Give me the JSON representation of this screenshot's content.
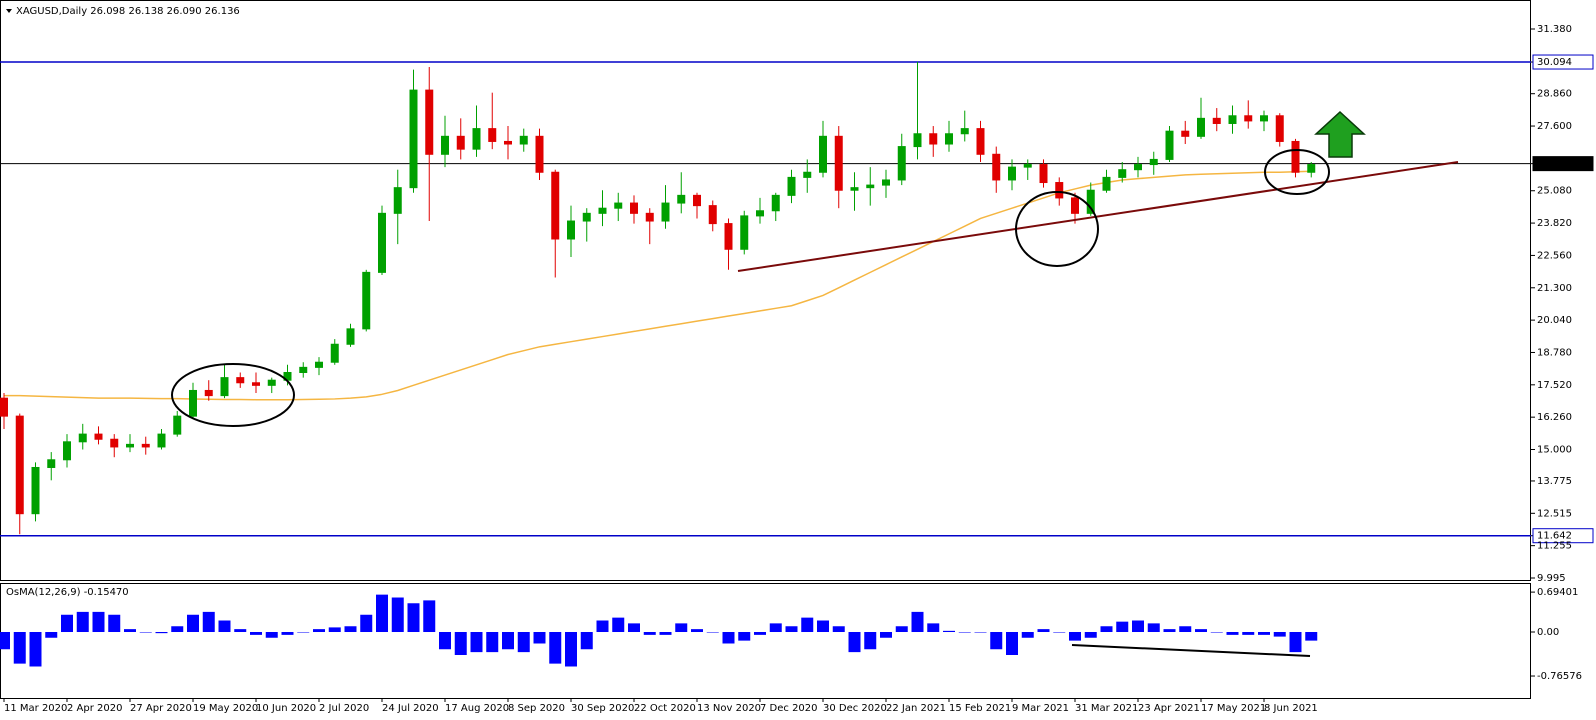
{
  "chart_data": {
    "type": "candlestick",
    "title": "XAGUSD,Daily  26.098 26.138 26.090 26.136",
    "categories": [
      "11 Mar 2020",
      null,
      null,
      null,
      "2 Apr 2020",
      null,
      null,
      null,
      "27 Apr 2020",
      null,
      null,
      null,
      "19 May 2020",
      null,
      null,
      null,
      "10 Jun 2020",
      null,
      null,
      null,
      "2 Jul 2020",
      null,
      null,
      null,
      "24 Jul 2020",
      null,
      null,
      null,
      "17 Aug 2020",
      null,
      null,
      null,
      "8 Sep 2020",
      null,
      null,
      null,
      "30 Sep 2020",
      null,
      null,
      null,
      "22 Oct 2020",
      null,
      null,
      null,
      "13 Nov 2020",
      null,
      null,
      null,
      "7 Dec 2020",
      null,
      null,
      null,
      "30 Dec 2020",
      null,
      null,
      null,
      "22 Jan 2021",
      null,
      null,
      null,
      "15 Feb 2021",
      null,
      null,
      null,
      "9 Mar 2021",
      null,
      null,
      null,
      "31 Mar 2021",
      null,
      null,
      null,
      "23 Apr 2021",
      null,
      null,
      null,
      "17 May 2021",
      null,
      null,
      null,
      "8 Jun 2021",
      null,
      null,
      null
    ],
    "ohlc": [
      [
        17.0,
        17.2,
        15.8,
        16.3
      ],
      [
        16.3,
        16.4,
        11.7,
        12.5
      ],
      [
        12.5,
        14.5,
        12.2,
        14.3
      ],
      [
        14.3,
        14.9,
        13.8,
        14.6
      ],
      [
        14.6,
        15.6,
        14.3,
        15.3
      ],
      [
        15.3,
        16.0,
        15.0,
        15.6
      ],
      [
        15.6,
        15.9,
        15.2,
        15.4
      ],
      [
        15.4,
        15.6,
        14.7,
        15.1
      ],
      [
        15.1,
        15.6,
        14.9,
        15.2
      ],
      [
        15.2,
        15.5,
        14.8,
        15.1
      ],
      [
        15.1,
        15.8,
        15.0,
        15.6
      ],
      [
        15.6,
        16.5,
        15.5,
        16.3
      ],
      [
        16.3,
        17.6,
        16.2,
        17.3
      ],
      [
        17.3,
        17.7,
        16.9,
        17.1
      ],
      [
        17.1,
        18.3,
        17.0,
        17.8
      ],
      [
        17.8,
        18.0,
        17.4,
        17.6
      ],
      [
        17.6,
        18.0,
        17.2,
        17.5
      ],
      [
        17.5,
        17.8,
        17.2,
        17.7
      ],
      [
        17.7,
        18.3,
        17.5,
        18.0
      ],
      [
        18.0,
        18.4,
        17.8,
        18.2
      ],
      [
        18.2,
        18.6,
        17.9,
        18.4
      ],
      [
        18.4,
        19.3,
        18.3,
        19.1
      ],
      [
        19.1,
        19.9,
        19.0,
        19.7
      ],
      [
        19.7,
        22.0,
        19.6,
        21.9
      ],
      [
        21.9,
        24.5,
        21.8,
        24.2
      ],
      [
        24.2,
        25.9,
        23.0,
        25.2
      ],
      [
        25.2,
        29.8,
        25.0,
        29.0
      ],
      [
        29.0,
        29.9,
        23.9,
        26.5
      ],
      [
        26.5,
        28.0,
        26.0,
        27.2
      ],
      [
        27.2,
        27.9,
        26.3,
        26.7
      ],
      [
        26.7,
        28.4,
        26.4,
        27.5
      ],
      [
        27.5,
        28.9,
        26.7,
        27.0
      ],
      [
        27.0,
        27.6,
        26.3,
        26.9
      ],
      [
        26.9,
        27.5,
        26.6,
        27.2
      ],
      [
        27.2,
        27.5,
        25.5,
        25.8
      ],
      [
        25.8,
        25.9,
        21.7,
        23.2
      ],
      [
        23.2,
        24.5,
        22.5,
        23.9
      ],
      [
        23.9,
        24.4,
        23.1,
        24.2
      ],
      [
        24.2,
        25.1,
        23.7,
        24.4
      ],
      [
        24.4,
        25.0,
        23.9,
        24.6
      ],
      [
        24.6,
        24.9,
        23.8,
        24.2
      ],
      [
        24.2,
        24.4,
        23.0,
        23.9
      ],
      [
        23.9,
        25.3,
        23.6,
        24.6
      ],
      [
        24.6,
        25.8,
        24.2,
        24.9
      ],
      [
        24.9,
        25.0,
        24.0,
        24.5
      ],
      [
        24.5,
        24.7,
        23.5,
        23.8
      ],
      [
        23.8,
        24.0,
        22.0,
        22.8
      ],
      [
        22.8,
        24.3,
        22.6,
        24.1
      ],
      [
        24.1,
        24.8,
        23.8,
        24.3
      ],
      [
        24.3,
        25.0,
        23.9,
        24.9
      ],
      [
        24.9,
        25.9,
        24.6,
        25.6
      ],
      [
        25.6,
        26.3,
        25.0,
        25.8
      ],
      [
        25.8,
        27.8,
        25.6,
        27.2
      ],
      [
        27.2,
        27.6,
        24.4,
        25.1
      ],
      [
        25.1,
        25.8,
        24.3,
        25.2
      ],
      [
        25.2,
        26.0,
        24.5,
        25.3
      ],
      [
        25.3,
        25.9,
        24.8,
        25.5
      ],
      [
        25.5,
        27.3,
        25.3,
        26.8
      ],
      [
        26.8,
        30.1,
        26.3,
        27.3
      ],
      [
        27.3,
        27.6,
        26.4,
        26.9
      ],
      [
        26.9,
        27.8,
        26.6,
        27.3
      ],
      [
        27.3,
        28.2,
        27.0,
        27.5
      ],
      [
        27.5,
        27.8,
        26.2,
        26.5
      ],
      [
        26.5,
        26.8,
        25.0,
        25.5
      ],
      [
        25.5,
        26.3,
        25.1,
        26.0
      ],
      [
        26.0,
        26.3,
        25.5,
        26.1
      ],
      [
        26.1,
        26.3,
        25.2,
        25.4
      ],
      [
        25.4,
        25.6,
        24.5,
        24.8
      ],
      [
        24.8,
        25.0,
        23.8,
        24.2
      ],
      [
        24.2,
        25.4,
        24.1,
        25.1
      ],
      [
        25.1,
        25.9,
        25.0,
        25.6
      ],
      [
        25.6,
        26.2,
        25.4,
        25.9
      ],
      [
        25.9,
        26.4,
        25.6,
        26.1
      ],
      [
        26.1,
        26.6,
        25.7,
        26.3
      ],
      [
        26.3,
        27.6,
        26.2,
        27.4
      ],
      [
        27.4,
        27.8,
        26.9,
        27.2
      ],
      [
        27.2,
        28.7,
        27.1,
        27.9
      ],
      [
        27.9,
        28.3,
        27.4,
        27.7
      ],
      [
        27.7,
        28.4,
        27.3,
        28.0
      ],
      [
        28.0,
        28.6,
        27.5,
        27.8
      ],
      [
        27.8,
        28.2,
        27.4,
        28.0
      ],
      [
        28.0,
        28.1,
        26.8,
        27.0
      ],
      [
        27.0,
        27.1,
        25.6,
        25.8
      ],
      [
        25.8,
        26.2,
        25.6,
        26.1
      ]
    ],
    "up_color": "#00a000",
    "down_color": "#e00000",
    "moving_average": {
      "color": "#f5b642",
      "values": [
        17.1,
        17.1,
        17.08,
        17.06,
        17.04,
        17.02,
        17.0,
        17.0,
        17.0,
        16.99,
        16.98,
        16.98,
        16.97,
        16.96,
        16.95,
        16.95,
        16.94,
        16.94,
        16.94,
        16.95,
        16.96,
        16.97,
        17.0,
        17.05,
        17.15,
        17.3,
        17.5,
        17.7,
        17.9,
        18.1,
        18.3,
        18.5,
        18.7,
        18.85,
        19.0,
        19.1,
        19.2,
        19.3,
        19.4,
        19.5,
        19.6,
        19.7,
        19.8,
        19.9,
        20.0,
        20.1,
        20.2,
        20.3,
        20.4,
        20.5,
        20.6,
        20.8,
        21.0,
        21.3,
        21.6,
        21.9,
        22.2,
        22.5,
        22.8,
        23.1,
        23.4,
        23.7,
        24.0,
        24.2,
        24.4,
        24.6,
        24.8,
        25.0,
        25.15,
        25.3,
        25.4,
        25.5,
        25.55,
        25.6,
        25.65,
        25.7,
        25.72,
        25.74,
        25.76,
        25.78,
        25.8,
        25.8,
        25.82,
        25.84
      ]
    },
    "hlines": [
      {
        "value": 30.094,
        "color": "#0000c8"
      },
      {
        "value": 11.642,
        "color": "#0000c8"
      },
      {
        "value": 26.136,
        "color": "#000000"
      }
    ],
    "ylim": [
      9.917,
      32.51
    ],
    "yticks": [
      {
        "value": 31.38,
        "label": "31.380"
      },
      30.094,
      {
        "value": 28.86,
        "label": "28.860"
      },
      {
        "value": 27.6,
        "label": "27.600"
      },
      26.136,
      {
        "value": 25.08,
        "label": "25.080"
      },
      {
        "value": 23.82,
        "label": "23.820"
      },
      {
        "value": 22.56,
        "label": "22.560"
      },
      {
        "value": 21.3,
        "label": "21.300"
      },
      {
        "value": 20.04,
        "label": "20.040"
      },
      {
        "value": 18.78,
        "label": "18.780"
      },
      {
        "value": 17.52,
        "label": "17.520"
      },
      {
        "value": 16.26,
        "label": "16.260"
      },
      {
        "value": 15,
        "label": "15.000"
      },
      13.775,
      12.515,
      11.642,
      11.255,
      9.995
    ],
    "oscillator": {
      "title": "OsMA(12,26,9) -0.15470",
      "color": "#0000ff",
      "values": [
        -0.3,
        -0.55,
        -0.6,
        -0.1,
        0.3,
        0.35,
        0.35,
        0.3,
        0.05,
        0.0,
        -0.02,
        0.1,
        0.3,
        0.35,
        0.2,
        0.05,
        -0.05,
        -0.1,
        -0.05,
        0.0,
        0.05,
        0.08,
        0.1,
        0.3,
        0.65,
        0.6,
        0.5,
        0.55,
        -0.3,
        -0.4,
        -0.35,
        -0.35,
        -0.3,
        -0.35,
        -0.2,
        -0.55,
        -0.6,
        -0.3,
        0.2,
        0.25,
        0.15,
        -0.05,
        -0.05,
        0.15,
        0.05,
        0.0,
        -0.2,
        -0.15,
        -0.05,
        0.15,
        0.1,
        0.25,
        0.2,
        0.1,
        -0.35,
        -0.3,
        -0.1,
        0.1,
        0.35,
        0.15,
        0.02,
        0.0,
        0.0,
        -0.3,
        -0.4,
        -0.1,
        0.05,
        0.0,
        -0.15,
        -0.1,
        0.1,
        0.18,
        0.2,
        0.15,
        0.05,
        0.1,
        0.05,
        0.0,
        -0.05,
        -0.05,
        -0.05,
        -0.08,
        -0.35,
        -0.15
      ],
      "ylim": [
        -1.148,
        0.835
      ],
      "yticks": [
        0.69401,
        {
          "value": 0,
          "label": "0.00"
        },
        -0.76576
      ]
    }
  }
}
